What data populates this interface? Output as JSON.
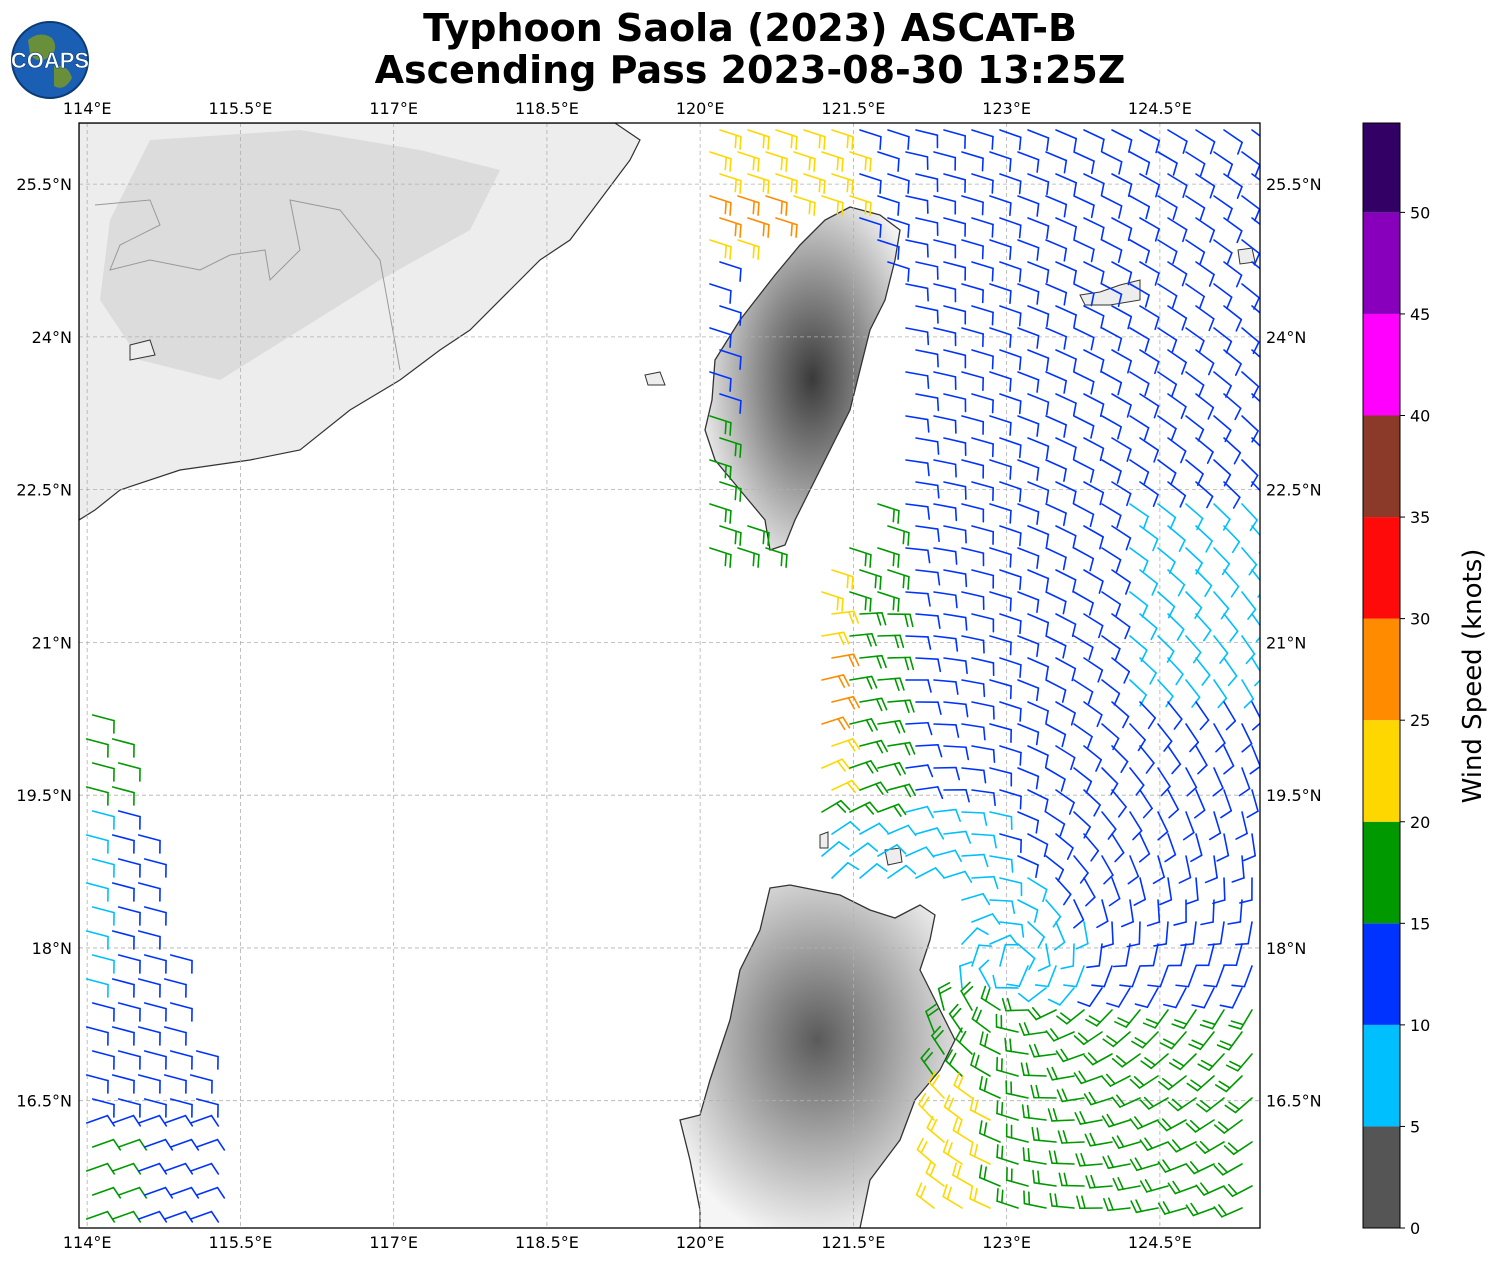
{
  "title": {
    "line1": "Typhoon Saola (2023) ASCAT-B",
    "line2": "Ascending Pass 2023-08-30 13:25Z"
  },
  "logo": {
    "text": "COAPS",
    "icon": "globe-logo"
  },
  "axes": {
    "lon_labels": [
      "114°E",
      "115.5°E",
      "117°E",
      "118.5°E",
      "120°E",
      "121.5°E",
      "123°E",
      "124.5°E"
    ],
    "lat_labels": [
      "25.5°N",
      "24°N",
      "22.5°N",
      "21°N",
      "19.5°N",
      "18°N",
      "16.5°N"
    ],
    "lon_range": [
      113.92,
      125.48
    ],
    "lat_range": [
      15.25,
      26.1
    ]
  },
  "colorbar": {
    "label": "Wind Speed (knots)",
    "ticks": [
      "0",
      "5",
      "10",
      "15",
      "20",
      "25",
      "30",
      "35",
      "40",
      "45",
      "50"
    ],
    "colors": [
      "#555555",
      "#00bfff",
      "#0033ff",
      "#009900",
      "#ffd700",
      "#ff8c00",
      "#ff0a0a",
      "#8b3a2a",
      "#ff00ff",
      "#8800bb",
      "#330066"
    ]
  },
  "colors": {
    "land": "#ededed",
    "coastline": "#333333",
    "grid": "#b0b0b0"
  }
}
